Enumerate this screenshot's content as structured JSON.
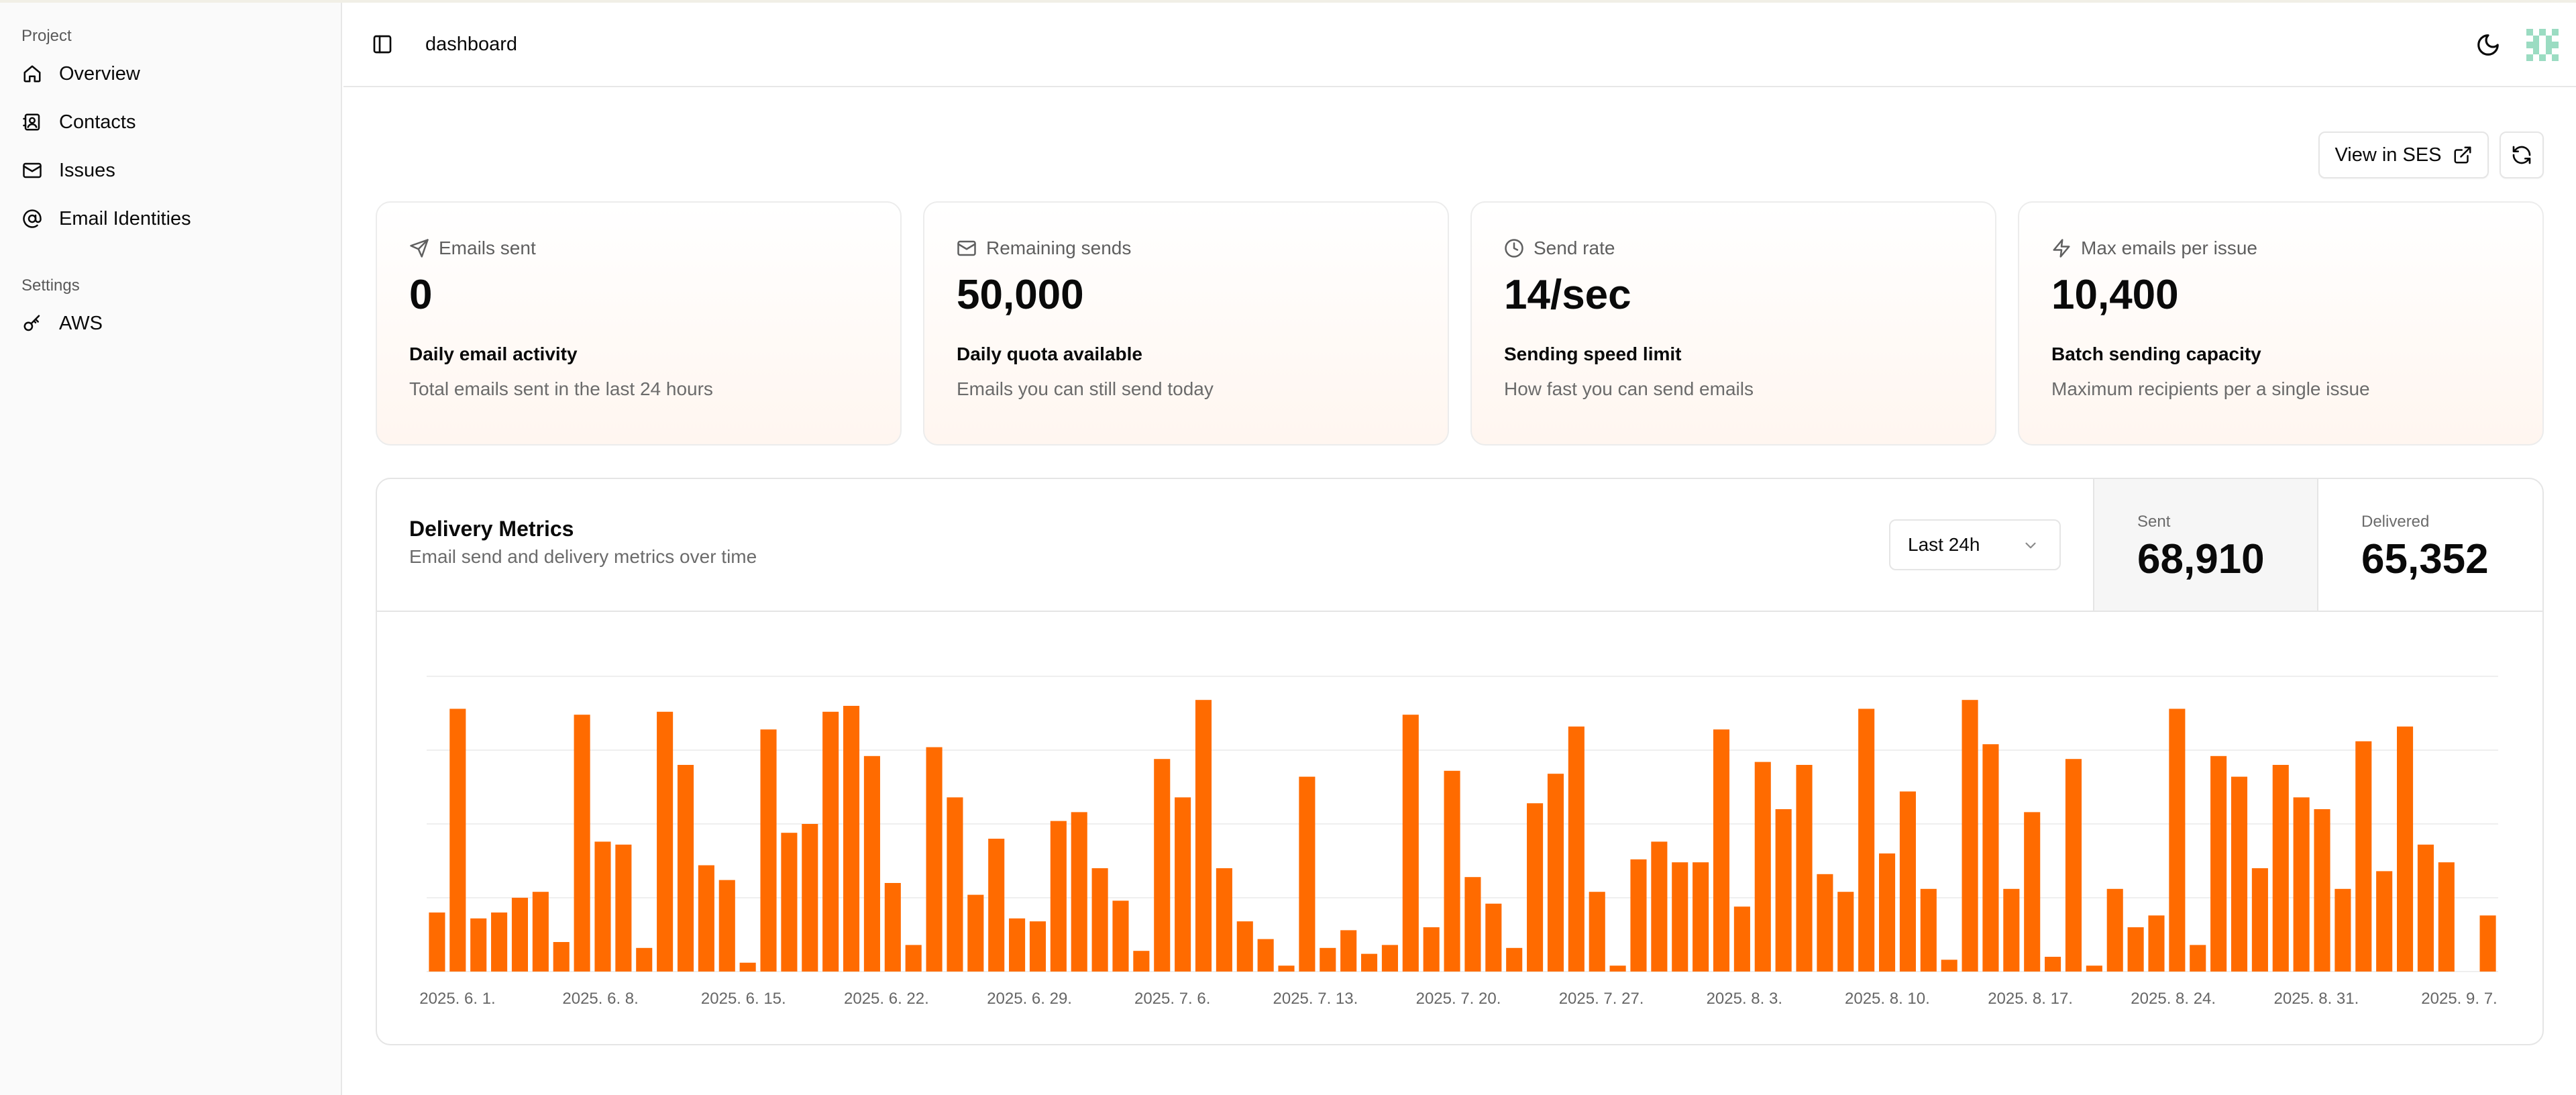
{
  "sidebar": {
    "groups": [
      {
        "label": "Project",
        "items": [
          {
            "label": "Overview",
            "icon": "home-icon"
          },
          {
            "label": "Contacts",
            "icon": "contact-book-icon"
          },
          {
            "label": "Issues",
            "icon": "mail-icon"
          },
          {
            "label": "Email Identities",
            "icon": "at-sign-icon"
          }
        ]
      },
      {
        "label": "Settings",
        "items": [
          {
            "label": "AWS",
            "icon": "key-icon"
          }
        ]
      }
    ]
  },
  "header": {
    "title": "dashboard",
    "theme_icon": "moon-icon",
    "toggle_icon": "sidebar-toggle-icon"
  },
  "actions": {
    "view_ses_label": "View in SES",
    "view_ses_icon": "external-link-icon",
    "refresh_icon": "refresh-icon"
  },
  "cards": [
    {
      "icon": "send-icon",
      "label": "Emails sent",
      "value": "0",
      "subtitle": "Daily email activity",
      "description": "Total emails sent in the last 24 hours"
    },
    {
      "icon": "mail-icon",
      "label": "Remaining sends",
      "value": "50,000",
      "subtitle": "Daily quota available",
      "description": "Emails you can still send today"
    },
    {
      "icon": "clock-icon",
      "label": "Send rate",
      "value": "14/sec",
      "subtitle": "Sending speed limit",
      "description": "How fast you can send emails"
    },
    {
      "icon": "zap-icon",
      "label": "Max emails per issue",
      "value": "10,400",
      "subtitle": "Batch sending capacity",
      "description": "Maximum recipients per a single issue"
    }
  ],
  "metrics": {
    "title": "Delivery Metrics",
    "description": "Email send and delivery metrics over time",
    "range_selected": "Last 24h",
    "sent_label": "Sent",
    "sent_value": "68,910",
    "delivered_label": "Delivered",
    "delivered_value": "65,352"
  },
  "colors": {
    "accent": "#ff6b00",
    "muted_text": "#6b6b6b",
    "border": "#e5e5e5"
  },
  "chart_data": {
    "type": "bar",
    "xlabel": "",
    "ylabel": "",
    "ylim": [
      0,
      100
    ],
    "grid": true,
    "x_tick_labels": [
      "2025. 6. 1.",
      "2025. 6. 8.",
      "2025. 6. 15.",
      "2025. 6. 22.",
      "2025. 6. 29.",
      "2025. 7. 6.",
      "2025. 7. 13.",
      "2025. 7. 20.",
      "2025. 7. 27.",
      "2025. 8. 3.",
      "2025. 8. 10.",
      "2025. 8. 17.",
      "2025. 8. 24.",
      "2025. 8. 31.",
      "2025. 9. 7."
    ],
    "values": [
      20,
      89,
      18,
      20,
      25,
      27,
      10,
      87,
      44,
      43,
      8,
      88,
      70,
      36,
      31,
      3,
      82,
      47,
      50,
      88,
      90,
      73,
      30,
      9,
      76,
      59,
      26,
      45,
      18,
      17,
      51,
      54,
      35,
      24,
      7,
      72,
      59,
      92,
      35,
      17,
      11,
      2,
      66,
      8,
      14,
      6,
      9,
      87,
      15,
      68,
      32,
      23,
      8,
      57,
      67,
      83,
      27,
      2,
      38,
      44,
      37,
      37,
      82,
      22,
      71,
      55,
      70,
      33,
      27,
      89,
      40,
      61,
      28,
      4,
      92,
      77,
      28,
      54,
      5,
      72,
      2,
      28,
      15,
      19,
      89,
      9,
      73,
      66,
      35,
      70,
      59,
      55,
      28,
      78,
      34,
      83,
      43,
      37,
      0,
      19
    ]
  }
}
